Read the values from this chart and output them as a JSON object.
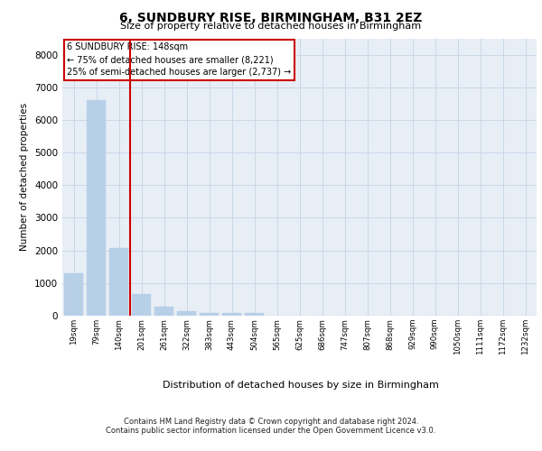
{
  "title_line1": "6, SUNDBURY RISE, BIRMINGHAM, B31 2EZ",
  "title_line2": "Size of property relative to detached houses in Birmingham",
  "xlabel": "Distribution of detached houses by size in Birmingham",
  "ylabel": "Number of detached properties",
  "categories": [
    "19sqm",
    "79sqm",
    "140sqm",
    "201sqm",
    "261sqm",
    "322sqm",
    "383sqm",
    "443sqm",
    "504sqm",
    "565sqm",
    "625sqm",
    "686sqm",
    "747sqm",
    "807sqm",
    "868sqm",
    "929sqm",
    "990sqm",
    "1050sqm",
    "1111sqm",
    "1172sqm",
    "1232sqm"
  ],
  "values": [
    1300,
    6600,
    2080,
    660,
    290,
    130,
    90,
    80,
    90,
    0,
    0,
    0,
    0,
    0,
    0,
    0,
    0,
    0,
    0,
    0,
    0
  ],
  "bar_color": "#b8cfe8",
  "bar_edgecolor": "#b8cfe8",
  "vline_color": "#cc0000",
  "vline_x_index": 2,
  "annotation_line1": "6 SUNDBURY RISE: 148sqm",
  "annotation_line2": "← 75% of detached houses are smaller (8,221)",
  "annotation_line3": "25% of semi-detached houses are larger (2,737) →",
  "annotation_box_facecolor": "#ffffff",
  "annotation_box_edgecolor": "#cc0000",
  "ylim": [
    0,
    8500
  ],
  "yticks": [
    0,
    1000,
    2000,
    3000,
    4000,
    5000,
    6000,
    7000,
    8000
  ],
  "grid_color": "#c8d8e8",
  "bg_color": "#e8eef5",
  "footnote1": "Contains HM Land Registry data © Crown copyright and database right 2024.",
  "footnote2": "Contains public sector information licensed under the Open Government Licence v3.0."
}
